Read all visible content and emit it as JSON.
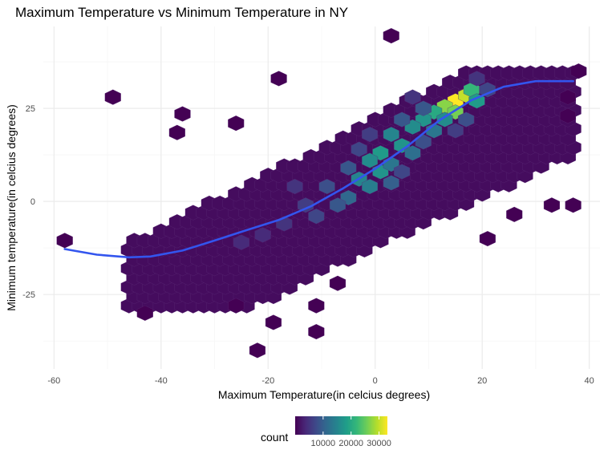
{
  "chart_data": {
    "type": "hexbin",
    "title": "Maximum Temperature vs Minimum Temperature in NY",
    "xlabel": "Maximum Temperature(in celcius degrees)",
    "ylabel": "Minimum temperature(in celcius degrees)",
    "xlim": [
      -62,
      42
    ],
    "ylim": [
      -45,
      47
    ],
    "x_ticks": [
      -60,
      -40,
      -20,
      0,
      20,
      40
    ],
    "y_ticks": [
      -25,
      0,
      25
    ],
    "grid": true,
    "legend": {
      "title": "count",
      "position": "bottom",
      "tick_labels": [
        "10000",
        "20000",
        "30000"
      ],
      "tick_values": [
        10000,
        20000,
        30000
      ],
      "range": [
        0,
        33000
      ]
    },
    "colors": {
      "scale": [
        "#440154",
        "#482878",
        "#3e4989",
        "#31688e",
        "#26828e",
        "#1f9e89",
        "#35b779",
        "#6ece58",
        "#b5de2b",
        "#fde725"
      ],
      "smooth_line": "#3355ee",
      "grid_major": "#ebebeb",
      "grid_minor": "#f5f5f5"
    },
    "smooth_line": {
      "x": [
        -58,
        -52,
        -46,
        -42,
        -36,
        -30,
        -24,
        -18,
        -12,
        -6,
        0,
        6,
        12,
        18,
        24,
        30,
        37
      ],
      "y": [
        -12.8,
        -14.3,
        -15.0,
        -14.8,
        -13.2,
        -10.5,
        -7.7,
        -5.0,
        -1.3,
        3.5,
        8.8,
        14.8,
        21.8,
        27.2,
        30.8,
        32.3,
        32.3
      ]
    },
    "hex_bins": [
      {
        "x": 3,
        "y": 44.5,
        "count": 10
      },
      {
        "x": -49,
        "y": 28,
        "count": 10
      },
      {
        "x": -58,
        "y": -10.5,
        "count": 10
      },
      {
        "x": 33,
        "y": -1,
        "count": 10
      },
      {
        "x": 26,
        "y": -3.5,
        "count": 10
      },
      {
        "x": 37,
        "y": -1,
        "count": 10
      },
      {
        "x": -37,
        "y": 18.5,
        "count": 10
      },
      {
        "x": -22,
        "y": -40,
        "count": 10
      },
      {
        "x": -19,
        "y": -32.5,
        "count": 10
      },
      {
        "x": -11,
        "y": -35,
        "count": 10
      },
      {
        "x": -43,
        "y": -30,
        "count": 10
      },
      {
        "x": -36,
        "y": 23.5,
        "count": 10
      },
      {
        "x": 38,
        "y": 35,
        "count": 10
      },
      {
        "x": 36,
        "y": 28,
        "count": 10
      },
      {
        "x": 36,
        "y": 23,
        "count": 10
      },
      {
        "x": -26,
        "y": 21,
        "count": 10
      },
      {
        "x": -18,
        "y": 33,
        "count": 10
      },
      {
        "x": -7,
        "y": -22,
        "count": 10
      },
      {
        "x": 21,
        "y": -10,
        "count": 10
      },
      {
        "x": -11,
        "y": -28,
        "count": 10
      },
      {
        "x": -26,
        "y": -28,
        "count": 10
      },
      {
        "x": 15,
        "y": 27,
        "count": 33000
      },
      {
        "x": 17,
        "y": 28.5,
        "count": 30000
      },
      {
        "x": 13,
        "y": 25.5,
        "count": 27000
      },
      {
        "x": 18,
        "y": 30,
        "count": 22000
      },
      {
        "x": 11,
        "y": 24,
        "count": 20000
      },
      {
        "x": 15,
        "y": 24,
        "count": 26000
      },
      {
        "x": 19,
        "y": 27,
        "count": 18000
      },
      {
        "x": 9,
        "y": 22,
        "count": 17000
      },
      {
        "x": 7,
        "y": 20,
        "count": 16000
      },
      {
        "x": 3,
        "y": 18,
        "count": 15000
      },
      {
        "x": 5,
        "y": 15,
        "count": 17000
      },
      {
        "x": 1,
        "y": 13,
        "count": 18000
      },
      {
        "x": -1,
        "y": 11,
        "count": 16000
      },
      {
        "x": 1,
        "y": 8,
        "count": 17000
      },
      {
        "x": -3,
        "y": 6,
        "count": 15000
      },
      {
        "x": -1,
        "y": 4,
        "count": 14000
      },
      {
        "x": -5,
        "y": 1,
        "count": 11000
      },
      {
        "x": -7,
        "y": -1,
        "count": 9000
      },
      {
        "x": -11,
        "y": -4,
        "count": 7000
      },
      {
        "x": 3,
        "y": 10,
        "count": 13000
      },
      {
        "x": 7,
        "y": 13,
        "count": 12000
      },
      {
        "x": 11,
        "y": 19,
        "count": 13000
      },
      {
        "x": 13,
        "y": 22,
        "count": 16000
      },
      {
        "x": 9,
        "y": 25,
        "count": 9000
      },
      {
        "x": 5,
        "y": 22,
        "count": 9000
      },
      {
        "x": 3,
        "y": 5,
        "count": 10000
      },
      {
        "x": -5,
        "y": 9,
        "count": 9000
      },
      {
        "x": -9,
        "y": 4,
        "count": 8000
      },
      {
        "x": -13,
        "y": -1,
        "count": 6000
      },
      {
        "x": -17,
        "y": -6,
        "count": 5000
      },
      {
        "x": -21,
        "y": -9,
        "count": 4000
      },
      {
        "x": 17,
        "y": 22,
        "count": 8000
      },
      {
        "x": 21,
        "y": 30,
        "count": 7000
      },
      {
        "x": 7,
        "y": 28,
        "count": 5000
      },
      {
        "x": 19,
        "y": 33,
        "count": 5000
      },
      {
        "x": -1,
        "y": 18,
        "count": 6000
      },
      {
        "x": 15,
        "y": 19,
        "count": 6000
      },
      {
        "x": 5,
        "y": 8,
        "count": 7000
      },
      {
        "x": -3,
        "y": 14,
        "count": 7000
      },
      {
        "x": 9,
        "y": 16,
        "count": 8000
      },
      {
        "x": -25,
        "y": -11,
        "count": 4000
      },
      {
        "x": -15,
        "y": 4,
        "count": 5000
      }
    ]
  }
}
